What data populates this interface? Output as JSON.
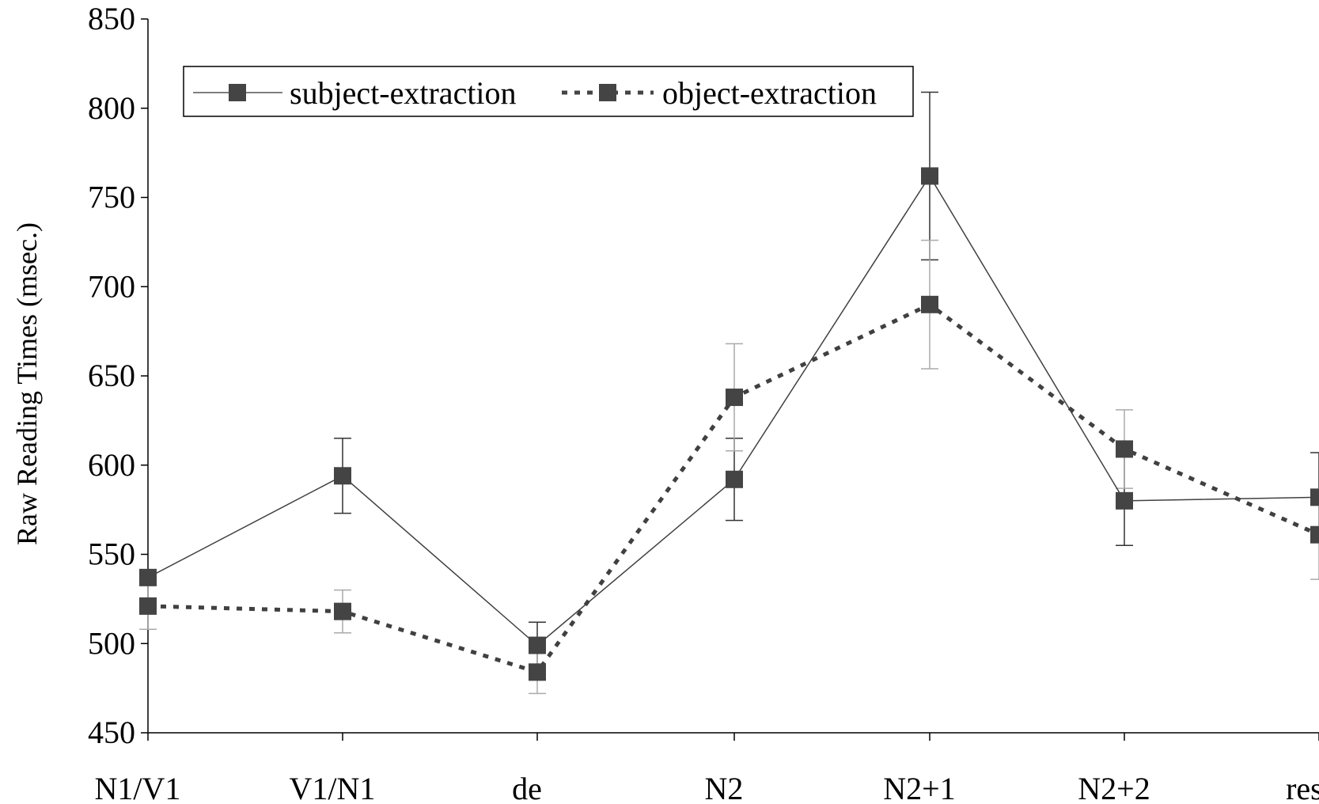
{
  "chart_data": {
    "type": "line",
    "title": "",
    "xlabel": "",
    "ylabel": "Raw Reading Times (msec.)",
    "ylim": [
      450,
      850
    ],
    "yticks": [
      450,
      500,
      550,
      600,
      650,
      700,
      750,
      800,
      850
    ],
    "categories": [
      "N1/V1",
      "V1/N1",
      "de",
      "N2",
      "N2+1",
      "N2+2",
      "rest"
    ],
    "legend_position": "top-left",
    "grid": false,
    "series": [
      {
        "name": "subject-extraction",
        "line_style": "solid",
        "marker": "square",
        "color": "#404040",
        "errorbar_color": "#333333",
        "values": [
          537,
          594,
          499,
          592,
          762,
          580,
          582
        ],
        "error": [
          0,
          21,
          13,
          23,
          47,
          25,
          25
        ]
      },
      {
        "name": "object-extraction",
        "line_style": "dotted",
        "marker": "square",
        "color": "#404040",
        "errorbar_color": "#aaaaaa",
        "values": [
          521,
          518,
          484,
          638,
          690,
          609,
          561
        ],
        "error": [
          13,
          12,
          12,
          30,
          36,
          22,
          25
        ]
      }
    ]
  }
}
